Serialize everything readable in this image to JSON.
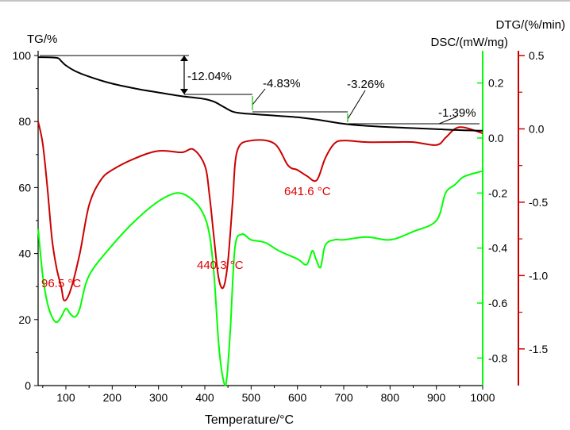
{
  "chart_data": {
    "type": "line",
    "title": "",
    "xlabel": "Temperature/°C",
    "xlim": [
      40,
      1000
    ],
    "xticks": [
      100,
      200,
      300,
      400,
      500,
      600,
      700,
      800,
      900,
      1000
    ],
    "axes": {
      "tg": {
        "label": "TG/%",
        "ylim": [
          0,
          100
        ],
        "ticks": [
          0,
          20,
          40,
          60,
          80,
          100
        ],
        "side": "left",
        "color": "#000000"
      },
      "dsc": {
        "label": "DSC/(mW/mg)",
        "ylim": [
          -0.9,
          0.3
        ],
        "ticks": [
          -0.8,
          -0.6,
          -0.4,
          -0.2,
          0.0,
          0.2
        ],
        "tick_labels": [
          "-0.8",
          "-0.6",
          "-0.4",
          "-0.2",
          "0.0",
          "0.2"
        ],
        "side": "right-inner",
        "color": "#00ff00"
      },
      "dtg": {
        "label": "DTG/(%/min)",
        "ylim": [
          -1.75,
          0.5
        ],
        "ticks": [
          -1.5,
          -1.0,
          -0.5,
          0.0,
          0.5
        ],
        "tick_labels": [
          "-1.5",
          "-1.0",
          "-0.5",
          "0.0",
          "0.5"
        ],
        "side": "right-outer",
        "color": "#cc0000"
      }
    },
    "series": [
      {
        "name": "TG",
        "axis": "tg",
        "color": "#000000",
        "x": [
          40,
          80,
          90,
          100,
          120,
          150,
          200,
          250,
          300,
          350,
          380,
          400,
          420,
          440,
          460,
          480,
          500,
          530,
          560,
          600,
          630,
          660,
          690,
          720,
          760,
          800,
          850,
          900,
          950,
          1000
        ],
        "y": [
          99.5,
          99.3,
          98.3,
          97.0,
          95.3,
          93.6,
          91.5,
          90.0,
          88.8,
          87.7,
          87.2,
          86.8,
          86.0,
          84.5,
          83.0,
          82.5,
          82.3,
          82.0,
          81.7,
          81.3,
          80.8,
          80.2,
          79.5,
          79.0,
          78.6,
          78.3,
          78.0,
          77.7,
          77.4,
          77.2
        ]
      },
      {
        "name": "DTG",
        "axis": "dtg",
        "color": "#cc0000",
        "x": [
          40,
          50,
          60,
          70,
          80,
          90,
          96.5,
          110,
          130,
          150,
          175,
          200,
          250,
          300,
          350,
          375,
          400,
          410,
          420,
          430,
          440.3,
          450,
          460,
          470,
          500,
          550,
          580,
          600,
          620,
          641.6,
          660,
          680,
          700,
          750,
          800,
          850,
          900,
          920,
          940,
          960,
          1000
        ],
        "y": [
          0.05,
          -0.1,
          -0.4,
          -0.75,
          -0.95,
          -1.08,
          -1.17,
          -1.1,
          -0.85,
          -0.52,
          -0.35,
          -0.28,
          -0.2,
          -0.15,
          -0.16,
          -0.14,
          -0.25,
          -0.45,
          -0.75,
          -1.02,
          -1.08,
          -0.9,
          -0.5,
          -0.15,
          -0.08,
          -0.1,
          -0.25,
          -0.28,
          -0.32,
          -0.35,
          -0.2,
          -0.1,
          -0.08,
          -0.09,
          -0.09,
          -0.09,
          -0.11,
          -0.06,
          0.0,
          0.01,
          -0.03
        ]
      },
      {
        "name": "DSC",
        "axis": "dsc",
        "color": "#00ff00",
        "x": [
          40,
          50,
          60,
          70,
          80,
          90,
          100,
          110,
          120,
          130,
          150,
          200,
          250,
          300,
          340,
          370,
          395,
          410,
          420,
          430,
          440,
          447,
          455,
          465,
          480,
          500,
          530,
          560,
          600,
          620,
          632,
          640,
          650,
          660,
          680,
          700,
          750,
          800,
          850,
          900,
          920,
          940,
          960,
          1000
        ],
        "y": [
          -0.33,
          -0.5,
          -0.6,
          -0.65,
          -0.67,
          -0.65,
          -0.62,
          -0.64,
          -0.65,
          -0.62,
          -0.5,
          -0.39,
          -0.3,
          -0.23,
          -0.2,
          -0.22,
          -0.27,
          -0.35,
          -0.5,
          -0.75,
          -0.88,
          -0.88,
          -0.7,
          -0.4,
          -0.35,
          -0.37,
          -0.38,
          -0.41,
          -0.44,
          -0.46,
          -0.41,
          -0.44,
          -0.47,
          -0.39,
          -0.37,
          -0.37,
          -0.36,
          -0.37,
          -0.34,
          -0.3,
          -0.2,
          -0.17,
          -0.14,
          -0.12
        ]
      }
    ],
    "annotations": [
      {
        "text": "-12.04%",
        "kind": "mass-loss",
        "x": 250
      },
      {
        "text": "-4.83%",
        "kind": "mass-loss",
        "x": 510
      },
      {
        "text": "-3.26%",
        "kind": "mass-loss",
        "x": 740
      },
      {
        "text": "-1.39%",
        "kind": "mass-loss",
        "x": 960
      },
      {
        "text": "96.5 °C",
        "kind": "peak",
        "x": 96.5
      },
      {
        "text": "440.3 °C",
        "kind": "peak",
        "x": 440.3
      },
      {
        "text": "641.6 °C",
        "kind": "peak",
        "x": 641.6
      }
    ]
  }
}
